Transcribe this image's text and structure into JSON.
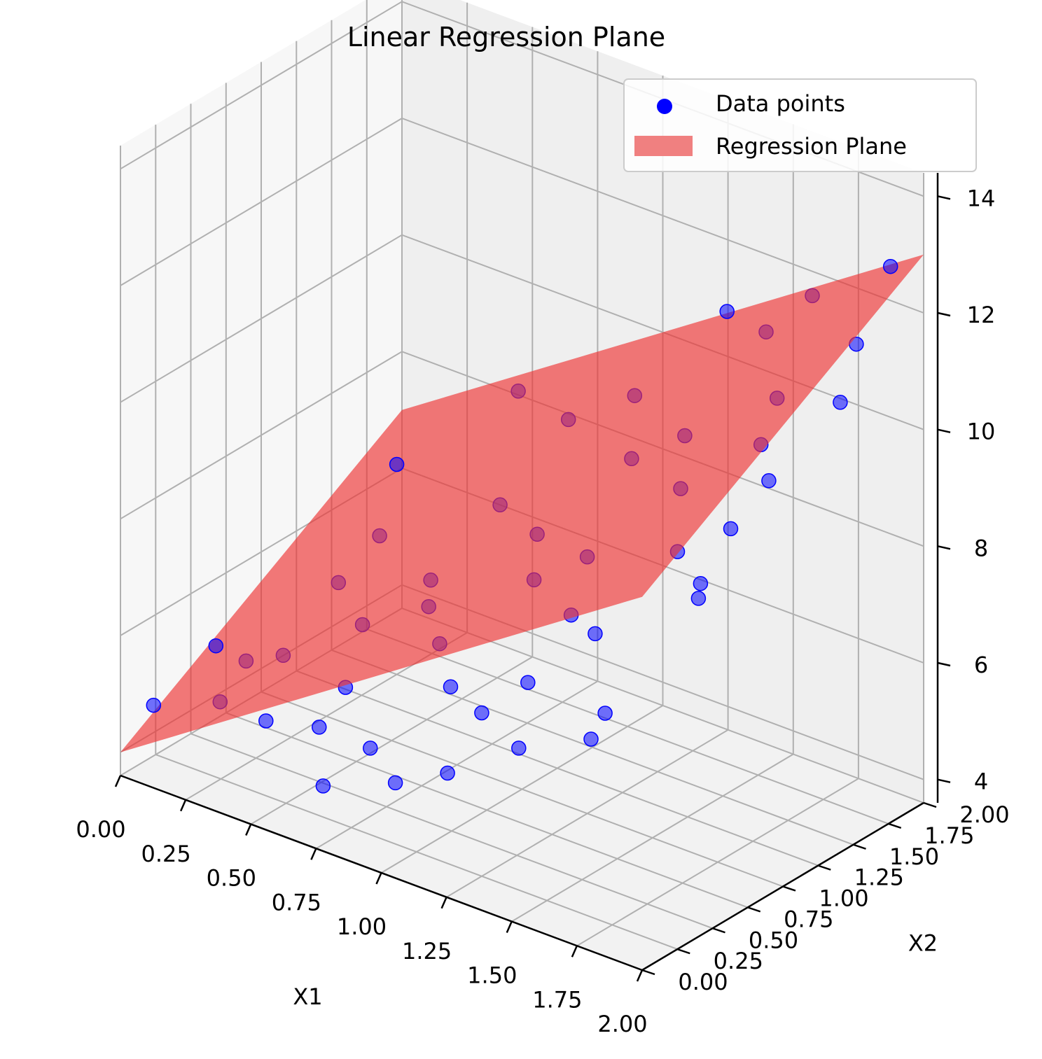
{
  "chart_data": {
    "type": "scatter",
    "subtype": "3d-scatter-with-regression-plane",
    "title": "Linear Regression Plane",
    "xlabel": "X1",
    "ylabel": "X2",
    "zlabel": "",
    "xlim": [
      0,
      2
    ],
    "ylim": [
      0,
      2
    ],
    "zlim": [
      3.6,
      14.4
    ],
    "xticks": [
      "0.00",
      "0.25",
      "0.50",
      "0.75",
      "1.00",
      "1.25",
      "1.50",
      "1.75",
      "2.00"
    ],
    "yticks": [
      "0.00",
      "0.25",
      "0.50",
      "0.75",
      "1.00",
      "1.25",
      "1.50",
      "1.75",
      "2.00"
    ],
    "zticks": [
      "4",
      "6",
      "8",
      "10",
      "12",
      "14"
    ],
    "grid": true,
    "legend_position": "top-right",
    "legend": [
      {
        "label": "Data points",
        "kind": "marker",
        "color": "#0000ff"
      },
      {
        "label": "Regression Plane",
        "kind": "patch",
        "color": "#f08080"
      }
    ],
    "plane": {
      "intercept": 4.0,
      "coef_x1": 3.0,
      "coef_x2": 1.5,
      "color": "#ee3333",
      "alpha": 0.65
    },
    "series": [
      {
        "name": "Data points",
        "color": "#0000ff",
        "points": [
          [
            0.1,
            0.05,
            4.9
          ],
          [
            0.15,
            0.4,
            5.5
          ],
          [
            0.22,
            0.3,
            4.8
          ],
          [
            0.3,
            0.6,
            5.3
          ],
          [
            0.35,
            0.9,
            6.2
          ],
          [
            0.45,
            0.2,
            5.0
          ],
          [
            0.4,
            1.1,
            6.8
          ],
          [
            0.55,
            0.7,
            6.1
          ],
          [
            0.6,
            0.3,
            5.0
          ],
          [
            0.62,
            0.45,
            5.5
          ],
          [
            0.65,
            1.0,
            6.6
          ],
          [
            0.7,
            1.4,
            7.4
          ],
          [
            0.75,
            0.8,
            6.6
          ],
          [
            0.8,
            1.7,
            8.6
          ],
          [
            0.85,
            0.2,
            5.2
          ],
          [
            0.9,
            0.6,
            6.5
          ],
          [
            0.95,
            1.2,
            7.6
          ],
          [
            1.0,
            1.8,
            9.2
          ],
          [
            1.05,
            0.4,
            6.3
          ],
          [
            1.1,
            0.9,
            7.5
          ],
          [
            1.15,
            1.5,
            8.8
          ],
          [
            1.2,
            0.1,
            5.5
          ],
          [
            1.25,
            1.0,
            8.0
          ],
          [
            1.3,
            1.6,
            9.3
          ],
          [
            1.35,
            0.7,
            7.6
          ],
          [
            1.4,
            0.3,
            7.1
          ],
          [
            1.45,
            1.9,
            10.9
          ],
          [
            1.5,
            1.2,
            9.3
          ],
          [
            1.55,
            0.5,
            7.9
          ],
          [
            1.6,
            1.7,
            10.3
          ],
          [
            1.65,
            0.9,
            8.9
          ],
          [
            1.7,
            1.4,
            10.1
          ],
          [
            1.75,
            0.2,
            7.3
          ],
          [
            1.8,
            1.0,
            9.4
          ],
          [
            1.85,
            1.8,
            11.5
          ],
          [
            1.9,
            0.6,
            9.2
          ],
          [
            1.95,
            1.5,
            11.1
          ],
          [
            2.0,
            0.4,
            9.4
          ],
          [
            0.05,
            0.8,
            4.5
          ],
          [
            0.25,
            1.5,
            7.2
          ],
          [
            0.5,
            1.9,
            8.3
          ],
          [
            0.75,
            0.05,
            4.6
          ],
          [
            1.0,
            0.1,
            5.0
          ],
          [
            1.25,
            0.25,
            6.4
          ],
          [
            1.5,
            0.05,
            6.5
          ],
          [
            1.75,
            0.1,
            7.0
          ],
          [
            2.0,
            0.9,
            10.7
          ],
          [
            1.9,
            1.95,
            12.7
          ],
          [
            1.6,
            1.95,
            11.7
          ],
          [
            1.3,
            1.9,
            11.0
          ]
        ]
      }
    ]
  }
}
